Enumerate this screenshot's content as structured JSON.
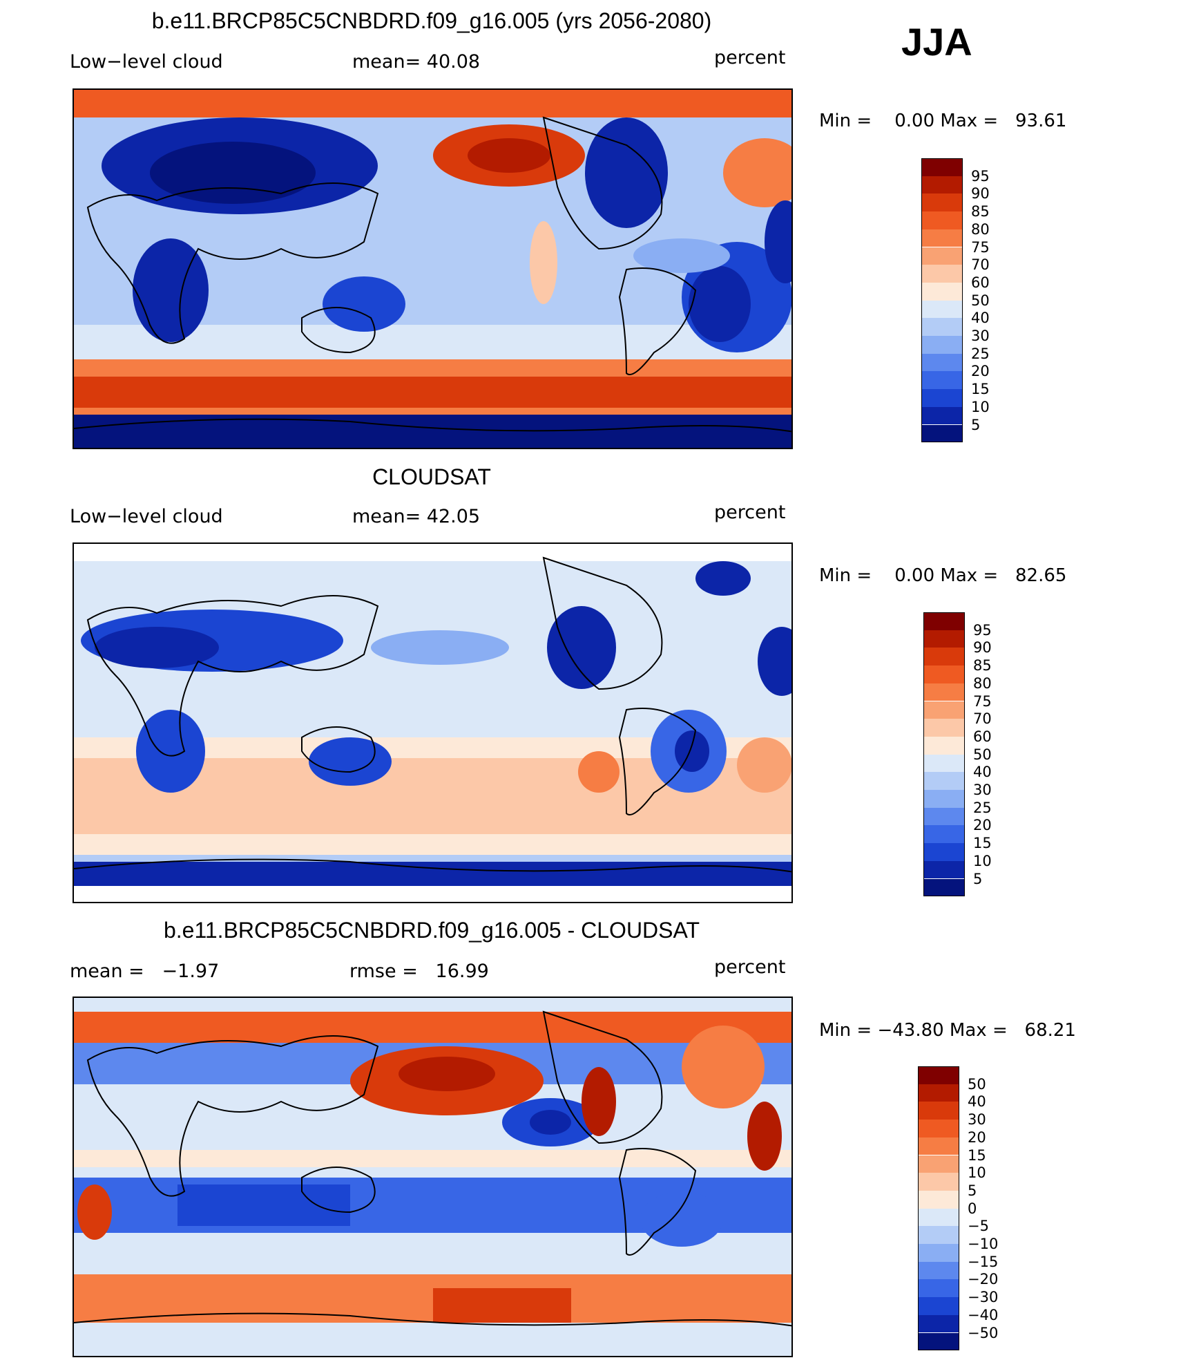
{
  "season": "JJA",
  "panels": [
    {
      "title": "b.e11.BRCP85C5CNBDRD.f09_g16.005 (yrs 2056-2080)",
      "left_label": "Low−level cloud",
      "center_label": "mean=   40.08",
      "units": "percent",
      "minmax": "Min =    0.00 Max =   93.61",
      "colorbar": [
        "95",
        "90",
        "85",
        "80",
        "75",
        "70",
        "60",
        "50",
        "40",
        "30",
        "25",
        "20",
        "15",
        "10",
        "5"
      ]
    },
    {
      "title": "CLOUDSAT",
      "left_label": "Low−level cloud",
      "center_label": "mean=   42.05",
      "units": "percent",
      "minmax": "Min =    0.00 Max =   82.65",
      "colorbar": [
        "95",
        "90",
        "85",
        "80",
        "75",
        "70",
        "60",
        "50",
        "40",
        "30",
        "25",
        "20",
        "15",
        "10",
        "5"
      ]
    },
    {
      "title": "b.e11.BRCP85C5CNBDRD.f09_g16.005 - CLOUDSAT",
      "left_label": "mean =   −1.97",
      "center_label": "rmse =   16.99",
      "units": "percent",
      "minmax": "Min = −43.80 Max =   68.21",
      "colorbar": [
        "50",
        "40",
        "30",
        "20",
        "15",
        "10",
        "5",
        "0",
        "−5",
        "−10",
        "−15",
        "−20",
        "−30",
        "−40",
        "−50"
      ]
    }
  ],
  "colors": {
    "palette": [
      "#7f0000",
      "#b31b00",
      "#d93a0b",
      "#ef5a22",
      "#f67d44",
      "#f9a273",
      "#fcc8a8",
      "#fde9d8",
      "#dbe8f8",
      "#b3ccf6",
      "#8aaef3",
      "#5d88ee",
      "#3866e6",
      "#1b45d2",
      "#0c25a8",
      "#04137d"
    ]
  }
}
